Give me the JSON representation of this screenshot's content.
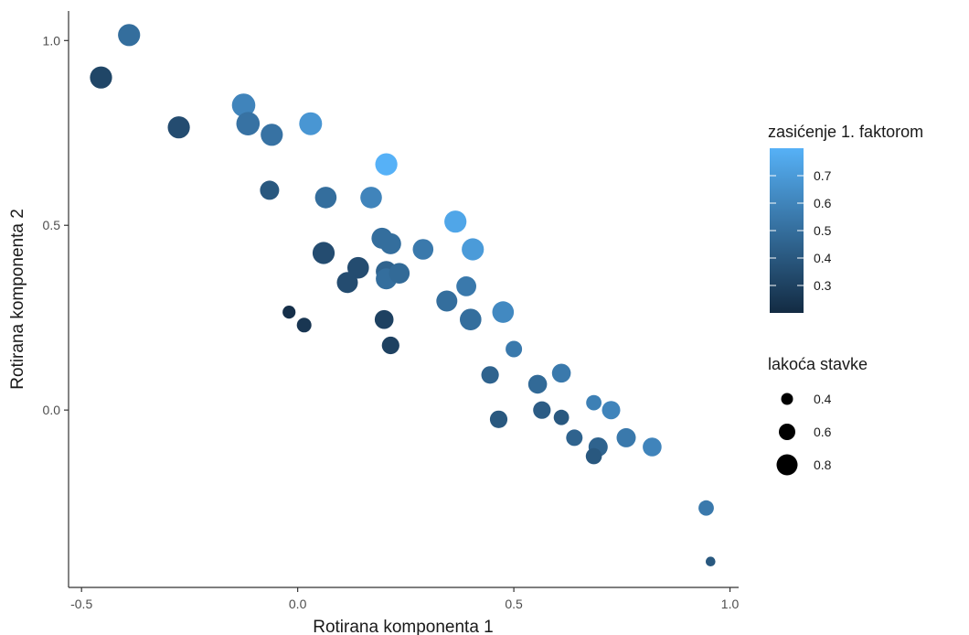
{
  "chart_data": {
    "type": "scatter",
    "xlabel": "Rotirana komponenta 1",
    "ylabel": "Rotirana komponenta 2",
    "xlim": [
      -0.53,
      1.02
    ],
    "ylim": [
      -0.48,
      1.08
    ],
    "x_ticks": [
      "-0.5",
      "0.0",
      "0.5",
      "1.0"
    ],
    "x_tick_values": [
      -0.5,
      0.0,
      0.5,
      1.0
    ],
    "y_ticks": [
      "0.0",
      "0.5",
      "1.0"
    ],
    "y_tick_values": [
      0.0,
      0.5,
      1.0
    ],
    "grid": false,
    "legend_placement": "right",
    "color_legend": {
      "title": "zasićenje 1. faktorom",
      "range": [
        0.2,
        0.8
      ],
      "ticks": [
        "0.7",
        "0.6",
        "0.5",
        "0.4",
        "0.3"
      ],
      "tick_values": [
        0.7,
        0.6,
        0.5,
        0.4,
        0.3
      ],
      "color_low": "#132b43",
      "color_high": "#56b1f7"
    },
    "size_legend": {
      "title": "lakoća stavke",
      "labels": [
        "0.4",
        "0.6",
        "0.8"
      ],
      "values": [
        0.4,
        0.6,
        0.8
      ]
    },
    "points": [
      {
        "x": -0.455,
        "y": 0.9,
        "color": 0.32,
        "size": 0.85
      },
      {
        "x": -0.39,
        "y": 1.015,
        "color": 0.5,
        "size": 0.85
      },
      {
        "x": -0.275,
        "y": 0.765,
        "color": 0.35,
        "size": 0.85
      },
      {
        "x": -0.125,
        "y": 0.825,
        "color": 0.6,
        "size": 0.9
      },
      {
        "x": -0.115,
        "y": 0.775,
        "color": 0.52,
        "size": 0.9
      },
      {
        "x": -0.06,
        "y": 0.745,
        "color": 0.52,
        "size": 0.85
      },
      {
        "x": -0.065,
        "y": 0.595,
        "color": 0.4,
        "size": 0.72
      },
      {
        "x": 0.03,
        "y": 0.775,
        "color": 0.68,
        "size": 0.88
      },
      {
        "x": 0.065,
        "y": 0.575,
        "color": 0.5,
        "size": 0.82
      },
      {
        "x": 0.17,
        "y": 0.575,
        "color": 0.6,
        "size": 0.82
      },
      {
        "x": 0.205,
        "y": 0.665,
        "color": 0.8,
        "size": 0.85
      },
      {
        "x": 0.06,
        "y": 0.425,
        "color": 0.35,
        "size": 0.85
      },
      {
        "x": 0.14,
        "y": 0.385,
        "color": 0.35,
        "size": 0.82
      },
      {
        "x": 0.115,
        "y": 0.345,
        "color": 0.35,
        "size": 0.8
      },
      {
        "x": 0.195,
        "y": 0.465,
        "color": 0.5,
        "size": 0.8
      },
      {
        "x": 0.215,
        "y": 0.45,
        "color": 0.5,
        "size": 0.8
      },
      {
        "x": 0.205,
        "y": 0.375,
        "color": 0.45,
        "size": 0.8
      },
      {
        "x": 0.205,
        "y": 0.355,
        "color": 0.5,
        "size": 0.8
      },
      {
        "x": 0.235,
        "y": 0.37,
        "color": 0.48,
        "size": 0.78
      },
      {
        "x": 0.29,
        "y": 0.435,
        "color": 0.55,
        "size": 0.78
      },
      {
        "x": 0.365,
        "y": 0.51,
        "color": 0.75,
        "size": 0.85
      },
      {
        "x": 0.405,
        "y": 0.435,
        "color": 0.7,
        "size": 0.85
      },
      {
        "x": 0.39,
        "y": 0.335,
        "color": 0.55,
        "size": 0.75
      },
      {
        "x": 0.345,
        "y": 0.295,
        "color": 0.5,
        "size": 0.8
      },
      {
        "x": 0.4,
        "y": 0.245,
        "color": 0.5,
        "size": 0.82
      },
      {
        "x": 0.475,
        "y": 0.265,
        "color": 0.62,
        "size": 0.82
      },
      {
        "x": -0.02,
        "y": 0.265,
        "color": 0.22,
        "size": 0.45
      },
      {
        "x": 0.015,
        "y": 0.23,
        "color": 0.25,
        "size": 0.52
      },
      {
        "x": 0.2,
        "y": 0.245,
        "color": 0.3,
        "size": 0.7
      },
      {
        "x": 0.215,
        "y": 0.175,
        "color": 0.3,
        "size": 0.65
      },
      {
        "x": 0.5,
        "y": 0.165,
        "color": 0.55,
        "size": 0.6
      },
      {
        "x": 0.445,
        "y": 0.095,
        "color": 0.45,
        "size": 0.65
      },
      {
        "x": 0.555,
        "y": 0.07,
        "color": 0.48,
        "size": 0.7
      },
      {
        "x": 0.61,
        "y": 0.1,
        "color": 0.55,
        "size": 0.7
      },
      {
        "x": 0.565,
        "y": 0.0,
        "color": 0.42,
        "size": 0.65
      },
      {
        "x": 0.61,
        "y": -0.02,
        "color": 0.4,
        "size": 0.55
      },
      {
        "x": 0.465,
        "y": -0.025,
        "color": 0.4,
        "size": 0.65
      },
      {
        "x": 0.685,
        "y": 0.02,
        "color": 0.58,
        "size": 0.55
      },
      {
        "x": 0.725,
        "y": 0.0,
        "color": 0.6,
        "size": 0.68
      },
      {
        "x": 0.64,
        "y": -0.075,
        "color": 0.45,
        "size": 0.6
      },
      {
        "x": 0.695,
        "y": -0.1,
        "color": 0.45,
        "size": 0.72
      },
      {
        "x": 0.685,
        "y": -0.125,
        "color": 0.4,
        "size": 0.58
      },
      {
        "x": 0.76,
        "y": -0.075,
        "color": 0.55,
        "size": 0.72
      },
      {
        "x": 0.82,
        "y": -0.1,
        "color": 0.6,
        "size": 0.7
      },
      {
        "x": 0.945,
        "y": -0.265,
        "color": 0.55,
        "size": 0.55
      },
      {
        "x": 0.955,
        "y": -0.41,
        "color": 0.4,
        "size": 0.3
      }
    ]
  }
}
